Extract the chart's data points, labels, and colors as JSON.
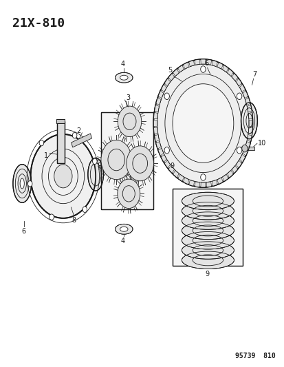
{
  "title_code": "21X-810",
  "footer_code": "95739  810",
  "bg_color": "#ffffff",
  "line_color": "#1a1a1a",
  "title_fontsize": 13,
  "footer_fontsize": 7,
  "label_fontsize": 7,
  "fig_width": 4.14,
  "fig_height": 5.33,
  "dpi": 100
}
